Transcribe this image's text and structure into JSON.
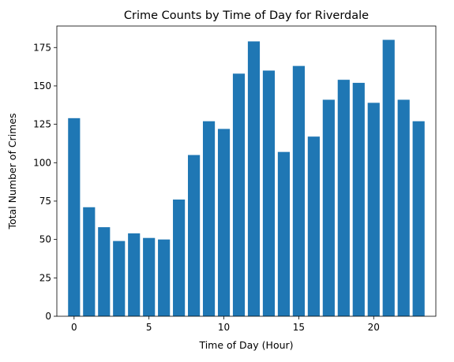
{
  "chart_data": {
    "type": "bar",
    "title": "Crime Counts by Time of Day for Riverdale",
    "xlabel": "Time of Day (Hour)",
    "ylabel": "Total Number of Crimes",
    "x": [
      0,
      1,
      2,
      3,
      4,
      5,
      6,
      7,
      8,
      9,
      10,
      11,
      12,
      13,
      14,
      15,
      16,
      17,
      18,
      19,
      20,
      21,
      22,
      23
    ],
    "values": [
      129,
      71,
      58,
      49,
      54,
      51,
      50,
      76,
      105,
      127,
      122,
      158,
      179,
      160,
      107,
      163,
      117,
      141,
      154,
      152,
      139,
      180,
      141,
      127
    ],
    "xticks": [
      0,
      5,
      10,
      15,
      20
    ],
    "yticks": [
      0,
      25,
      50,
      75,
      100,
      125,
      150,
      175
    ],
    "xlim": [
      -1.15,
      24.15
    ],
    "ylim": [
      0,
      189
    ],
    "grid": false,
    "legend": "none",
    "bar_color": "#1f77b4"
  }
}
